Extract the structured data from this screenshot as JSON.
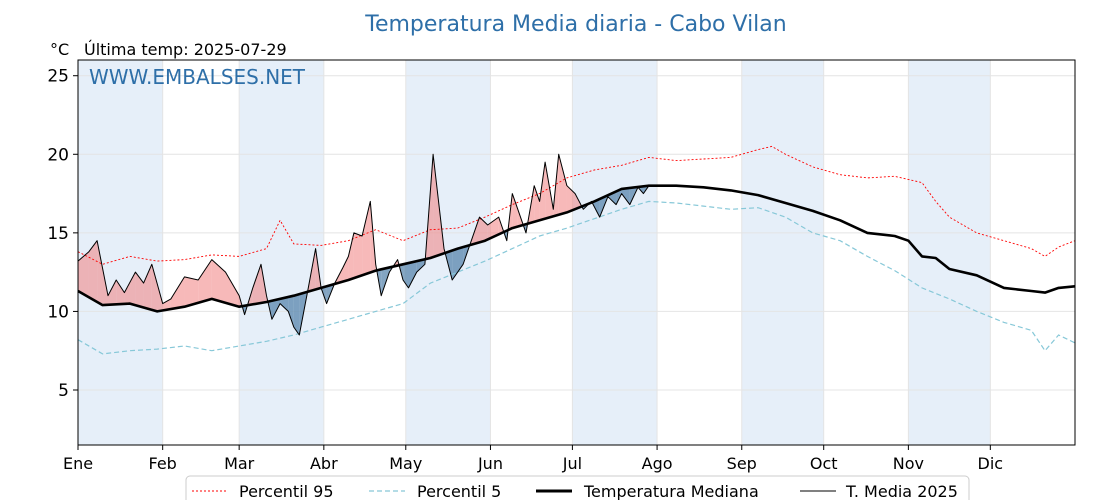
{
  "chart_data": {
    "type": "line",
    "title": "Temperatura Media diaria - Cabo Vilan",
    "unit_label": "°C",
    "last_temp_label": "Última temp: 2025-07-29",
    "watermark": "WWW.EMBALSES.NET",
    "xlabel": "",
    "ylabel": "",
    "xlim": [
      1,
      366
    ],
    "ylim": [
      1.5,
      26
    ],
    "yticks": [
      5,
      10,
      15,
      20,
      25
    ],
    "month_ticks": [
      {
        "label": "Ene",
        "day": 1
      },
      {
        "label": "Feb",
        "day": 32
      },
      {
        "label": "Mar",
        "day": 60
      },
      {
        "label": "Abr",
        "day": 91
      },
      {
        "label": "May",
        "day": 121
      },
      {
        "label": "Jun",
        "day": 152
      },
      {
        "label": "Jul",
        "day": 182
      },
      {
        "label": "Ago",
        "day": 213
      },
      {
        "label": "Sep",
        "day": 244
      },
      {
        "label": "Oct",
        "day": 274
      },
      {
        "label": "Nov",
        "day": 305
      },
      {
        "label": "Dic",
        "day": 335
      }
    ],
    "shaded_months": [
      {
        "from": 1,
        "to": 32
      },
      {
        "from": 60,
        "to": 91
      },
      {
        "from": 121,
        "to": 152
      },
      {
        "from": 182,
        "to": 213
      },
      {
        "from": 244,
        "to": 274
      },
      {
        "from": 305,
        "to": 335
      }
    ],
    "grid": true,
    "legend_position": "bottom-center",
    "colors": {
      "title": "#2e6fa8",
      "p95": "#ff0000",
      "p5": "#87c8d8",
      "median": "#000000",
      "current": "#000000",
      "above": "#f08080",
      "below": "#4f7fa8",
      "shade": "#e6eff9",
      "grid": "#e4e4e4"
    },
    "series": [
      {
        "name": "Percentil 95",
        "style": "dotted-red",
        "x": [
          1,
          10,
          20,
          30,
          40,
          50,
          60,
          70,
          75,
          80,
          90,
          100,
          110,
          120,
          130,
          140,
          150,
          160,
          170,
          180,
          190,
          200,
          210,
          220,
          230,
          240,
          250,
          255,
          260,
          270,
          280,
          290,
          300,
          310,
          315,
          320,
          330,
          340,
          350,
          355,
          360,
          366
        ],
        "values": [
          13.8,
          13.0,
          13.5,
          13.2,
          13.3,
          13.6,
          13.5,
          14.0,
          15.8,
          14.3,
          14.2,
          14.5,
          15.2,
          14.5,
          15.2,
          15.3,
          16.0,
          16.8,
          17.5,
          18.5,
          19.0,
          19.3,
          19.8,
          19.6,
          19.7,
          19.8,
          20.3,
          20.5,
          20.0,
          19.2,
          18.7,
          18.5,
          18.6,
          18.2,
          17.0,
          16.0,
          15.0,
          14.5,
          14.0,
          13.5,
          14.1,
          14.5
        ]
      },
      {
        "name": "Percentil 5",
        "style": "dashed-lightblue",
        "x": [
          1,
          10,
          20,
          30,
          40,
          50,
          60,
          70,
          80,
          90,
          100,
          110,
          120,
          130,
          140,
          150,
          160,
          170,
          180,
          190,
          200,
          210,
          220,
          230,
          240,
          250,
          260,
          270,
          280,
          290,
          300,
          310,
          320,
          330,
          340,
          350,
          355,
          360,
          366
        ],
        "values": [
          8.2,
          7.3,
          7.5,
          7.6,
          7.8,
          7.5,
          7.8,
          8.1,
          8.5,
          9.0,
          9.5,
          10.0,
          10.5,
          11.8,
          12.5,
          13.2,
          14.0,
          14.8,
          15.3,
          15.9,
          16.5,
          17.0,
          16.9,
          16.7,
          16.5,
          16.6,
          16.0,
          15.0,
          14.5,
          13.5,
          12.6,
          11.5,
          10.8,
          10.0,
          9.3,
          8.8,
          7.5,
          8.5,
          8.0
        ]
      },
      {
        "name": "Temperatura Mediana",
        "style": "solid-black-thick",
        "x": [
          1,
          10,
          20,
          30,
          40,
          50,
          60,
          70,
          80,
          90,
          100,
          110,
          120,
          130,
          140,
          150,
          160,
          170,
          180,
          190,
          200,
          210,
          220,
          230,
          240,
          250,
          260,
          270,
          280,
          290,
          300,
          305,
          310,
          315,
          320,
          330,
          340,
          350,
          355,
          360,
          366
        ],
        "values": [
          11.3,
          10.4,
          10.5,
          10.0,
          10.3,
          10.8,
          10.3,
          10.6,
          11.0,
          11.5,
          12.0,
          12.6,
          13.0,
          13.4,
          14.0,
          14.5,
          15.3,
          15.8,
          16.3,
          17.0,
          17.8,
          18.0,
          18.0,
          17.9,
          17.7,
          17.4,
          16.9,
          16.4,
          15.8,
          15.0,
          14.8,
          14.5,
          13.5,
          13.4,
          12.7,
          12.3,
          11.5,
          11.3,
          11.2,
          11.5,
          11.6
        ]
      },
      {
        "name": "T. Media 2025",
        "style": "solid-black-thin",
        "x": [
          1,
          5,
          8,
          12,
          15,
          18,
          22,
          25,
          28,
          32,
          35,
          40,
          45,
          50,
          55,
          60,
          62,
          65,
          68,
          70,
          72,
          75,
          78,
          80,
          82,
          85,
          88,
          90,
          92,
          95,
          98,
          100,
          102,
          105,
          108,
          110,
          112,
          115,
          118,
          120,
          122,
          125,
          128,
          131,
          135,
          138,
          142,
          145,
          148,
          151,
          155,
          158,
          160,
          162,
          165,
          168,
          170,
          172,
          175,
          177,
          180,
          183,
          186,
          189,
          192,
          195,
          198,
          200,
          203,
          206,
          208,
          210
        ],
        "values": [
          13.2,
          13.8,
          14.5,
          11.0,
          12.0,
          11.2,
          12.5,
          11.8,
          13.0,
          10.5,
          10.8,
          12.2,
          12.0,
          13.3,
          12.5,
          11.0,
          9.8,
          11.5,
          13.0,
          11.0,
          9.5,
          10.5,
          10.0,
          9.0,
          8.5,
          11.2,
          14.0,
          11.5,
          10.5,
          11.8,
          12.8,
          13.5,
          15.0,
          14.8,
          17.0,
          13.0,
          11.0,
          12.5,
          13.3,
          12.0,
          11.5,
          12.5,
          13.0,
          20.0,
          14.0,
          12.0,
          13.0,
          14.5,
          16.0,
          15.5,
          16.0,
          14.5,
          17.5,
          16.5,
          15.0,
          18.0,
          17.0,
          19.5,
          16.5,
          20.0,
          18.0,
          17.5,
          16.5,
          17.0,
          16.0,
          17.3,
          16.8,
          17.5,
          16.8,
          17.9,
          17.5,
          18.0
        ]
      }
    ]
  }
}
